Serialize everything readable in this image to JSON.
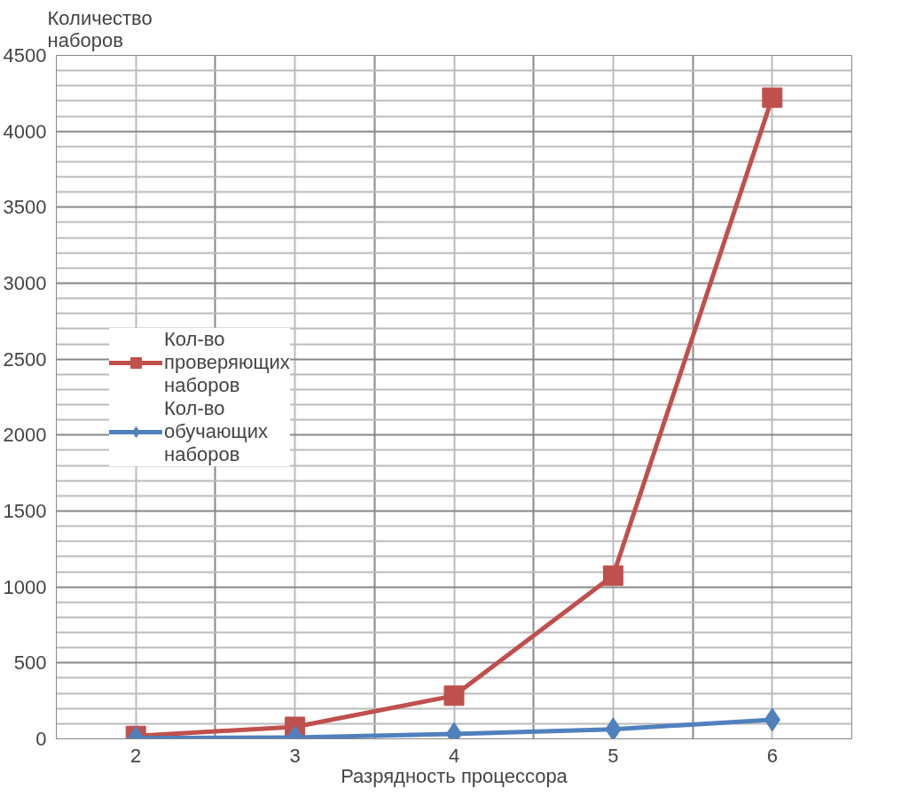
{
  "chart_data": {
    "type": "line",
    "xlabel": "Разрядность процессора",
    "ylabel": "Количество наборов",
    "categories": [
      "2",
      "3",
      "4",
      "5",
      "6"
    ],
    "series": [
      {
        "name": "Кол-во проверяющих наборов",
        "color": "#c0504d",
        "marker": "square",
        "values": [
          19,
          79,
          284,
          1075,
          4222
        ]
      },
      {
        "name": "Кол-во обучающих наборов",
        "color": "#4f81bd",
        "marker": "diamond",
        "values": [
          5,
          9,
          32,
          63,
          126
        ]
      }
    ],
    "ylim": [
      0,
      4500
    ],
    "yticks": [
      0,
      500,
      1000,
      1500,
      2000,
      2500,
      3000,
      3500,
      4000,
      4500
    ],
    "grid": true,
    "legend": "left"
  }
}
